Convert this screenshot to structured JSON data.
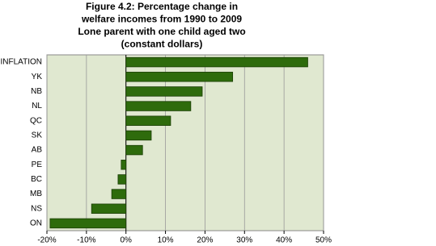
{
  "chart_data": {
    "type": "barh",
    "title": [
      "Figure 4.2: Percentage change in",
      "welfare incomes from 1990 to 2009",
      "Lone parent with one child aged two",
      "(constant dollars)"
    ],
    "categories": [
      "INFLATION",
      "YK",
      "NB",
      "NL",
      "QC",
      "SK",
      "AB",
      "PE",
      "BC",
      "MB",
      "NS",
      "ON"
    ],
    "values": [
      46,
      27,
      19.3,
      16.4,
      11.3,
      6.4,
      4.2,
      -1.2,
      -2,
      -3.6,
      -8.7,
      -19.2
    ],
    "color": "#2e6b0c",
    "xlim": [
      -20,
      50
    ],
    "xticks": [
      {
        "value": -20,
        "label": "-20%"
      },
      {
        "value": -10,
        "label": "-10%"
      },
      {
        "value": 0,
        "label": "0%"
      },
      {
        "value": 10,
        "label": "10%"
      },
      {
        "value": 20,
        "label": "20%"
      },
      {
        "value": 30,
        "label": "30%"
      },
      {
        "value": 40,
        "label": "40%"
      },
      {
        "value": 50,
        "label": "50%"
      }
    ],
    "grid": true
  }
}
